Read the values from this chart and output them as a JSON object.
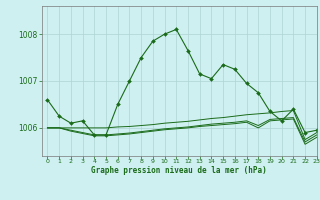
{
  "title": "Graphe pression niveau de la mer (hPa)",
  "background_color": "#cff0f0",
  "grid_color": "#aed4d4",
  "line_color": "#1a6b1a",
  "xlim": [
    -0.5,
    23
  ],
  "ylim": [
    1005.4,
    1008.6
  ],
  "yticks": [
    1006,
    1007,
    1008
  ],
  "xticks": [
    0,
    1,
    2,
    3,
    4,
    5,
    6,
    7,
    8,
    9,
    10,
    11,
    12,
    13,
    14,
    15,
    16,
    17,
    18,
    19,
    20,
    21,
    22,
    23
  ],
  "series0": [
    1006.6,
    1006.25,
    1006.1,
    1006.15,
    1005.85,
    1005.85,
    1006.5,
    1007.0,
    1007.5,
    1007.85,
    1008.0,
    1008.1,
    1007.65,
    1007.15,
    1007.05,
    1007.35,
    1007.25,
    1006.95,
    1006.75,
    1006.35,
    1006.15,
    1006.4,
    1005.9,
    1005.95
  ],
  "series1": [
    1006.0,
    1006.0,
    1006.0,
    1006.0,
    1006.0,
    1006.0,
    1006.02,
    1006.03,
    1006.05,
    1006.07,
    1006.1,
    1006.12,
    1006.14,
    1006.17,
    1006.2,
    1006.22,
    1006.25,
    1006.28,
    1006.3,
    1006.32,
    1006.35,
    1006.37,
    1005.75,
    1005.9
  ],
  "series2": [
    1006.0,
    1006.0,
    1005.95,
    1005.9,
    1005.85,
    1005.85,
    1005.87,
    1005.89,
    1005.92,
    1005.95,
    1005.98,
    1006.0,
    1006.02,
    1006.05,
    1006.08,
    1006.1,
    1006.12,
    1006.15,
    1006.05,
    1006.18,
    1006.2,
    1006.22,
    1005.7,
    1005.85
  ],
  "series3": [
    1006.0,
    1006.0,
    1005.93,
    1005.88,
    1005.83,
    1005.83,
    1005.85,
    1005.87,
    1005.9,
    1005.93,
    1005.96,
    1005.98,
    1006.0,
    1006.03,
    1006.05,
    1006.07,
    1006.09,
    1006.12,
    1006.0,
    1006.15,
    1006.17,
    1006.19,
    1005.65,
    1005.8
  ]
}
